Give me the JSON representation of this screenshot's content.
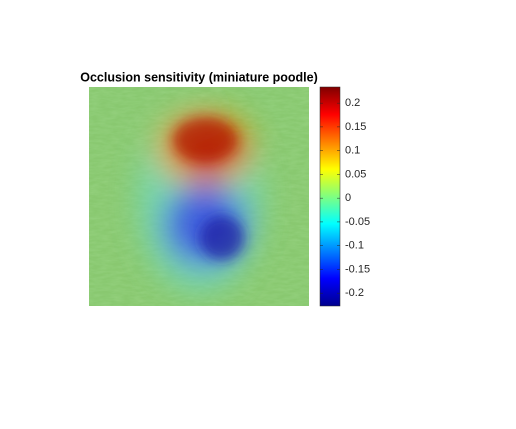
{
  "chart_data": {
    "type": "image",
    "title": "Occlusion sensitivity (miniature poodle)",
    "colormap": "jet",
    "clim": [
      -0.227,
      0.234
    ],
    "cticks": [
      -0.2,
      -0.15,
      -0.1,
      -0.05,
      0,
      0.05,
      0.1,
      0.15,
      0.2
    ]
  }
}
